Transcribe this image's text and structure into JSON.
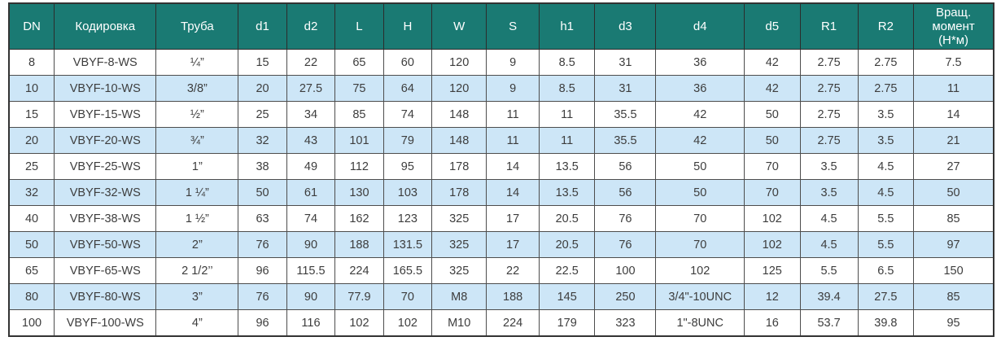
{
  "table": {
    "column_keys": [
      "dn",
      "kodirovka",
      "truba",
      "d1",
      "d2",
      "l",
      "h",
      "w",
      "s",
      "h1",
      "d3",
      "d4",
      "d5",
      "r1",
      "r2",
      "torque"
    ],
    "columns": [
      "DN",
      "Кодировка",
      "Труба",
      "d1",
      "d2",
      "L",
      "H",
      "W",
      "S",
      "h1",
      "d3",
      "d4",
      "d5",
      "R1",
      "R2",
      "Вращ. момент (Н*м)"
    ],
    "rows": [
      [
        "8",
        "VBYF-8-WS",
        "¼”",
        "15",
        "22",
        "65",
        "60",
        "120",
        "9",
        "8.5",
        "31",
        "36",
        "42",
        "2.75",
        "2.75",
        "7.5"
      ],
      [
        "10",
        "VBYF-10-WS",
        "3/8”",
        "20",
        "27.5",
        "75",
        "64",
        "120",
        "9",
        "8.5",
        "31",
        "36",
        "42",
        "2.75",
        "2.75",
        "11"
      ],
      [
        "15",
        "VBYF-15-WS",
        "½”",
        "25",
        "34",
        "85",
        "74",
        "148",
        "11",
        "11",
        "35.5",
        "42",
        "50",
        "2.75",
        "3.5",
        "14"
      ],
      [
        "20",
        "VBYF-20-WS",
        "¾”",
        "32",
        "43",
        "101",
        "79",
        "148",
        "11",
        "11",
        "35.5",
        "42",
        "50",
        "2.75",
        "3.5",
        "21"
      ],
      [
        "25",
        "VBYF-25-WS",
        "1”",
        "38",
        "49",
        "112",
        "95",
        "178",
        "14",
        "13.5",
        "56",
        "50",
        "70",
        "3.5",
        "4.5",
        "27"
      ],
      [
        "32",
        "VBYF-32-WS",
        "1 ¼”",
        "50",
        "61",
        "130",
        "103",
        "178",
        "14",
        "13.5",
        "56",
        "50",
        "70",
        "3.5",
        "4.5",
        "50"
      ],
      [
        "40",
        "VBYF-38-WS",
        "1 ½”",
        "63",
        "74",
        "162",
        "123",
        "325",
        "17",
        "20.5",
        "76",
        "70",
        "102",
        "4.5",
        "5.5",
        "85"
      ],
      [
        "50",
        "VBYF-50-WS",
        "2”",
        "76",
        "90",
        "188",
        "131.5",
        "325",
        "17",
        "20.5",
        "76",
        "70",
        "102",
        "4.5",
        "5.5",
        "97"
      ],
      [
        "65",
        "VBYF-65-WS",
        "2 1/2’’",
        "96",
        "115.5",
        "224",
        "165.5",
        "325",
        "22",
        "22.5",
        "100",
        "102",
        "125",
        "5.5",
        "6.5",
        "150"
      ],
      [
        "80",
        "VBYF-80-WS",
        "3”",
        "76",
        "90",
        "77.9",
        "70",
        "M8",
        "188",
        "145",
        "250",
        "3/4\"-10UNC",
        "12",
        "39.4",
        "27.5",
        "85"
      ],
      [
        "100",
        "VBYF-100-WS",
        "4”",
        "96",
        "116",
        "102",
        "102",
        "M10",
        "224",
        "179",
        "323",
        "1\"-8UNC",
        "16",
        "53.7",
        "39.8",
        "95"
      ]
    ]
  },
  "colors": {
    "header_bg": "#1a7a73",
    "header_text": "#ffffff",
    "row_bg": "#ffffff",
    "row_alt_bg": "#cde6f7",
    "border": "#4d4d4d",
    "cell_text": "#3d3d3d"
  }
}
